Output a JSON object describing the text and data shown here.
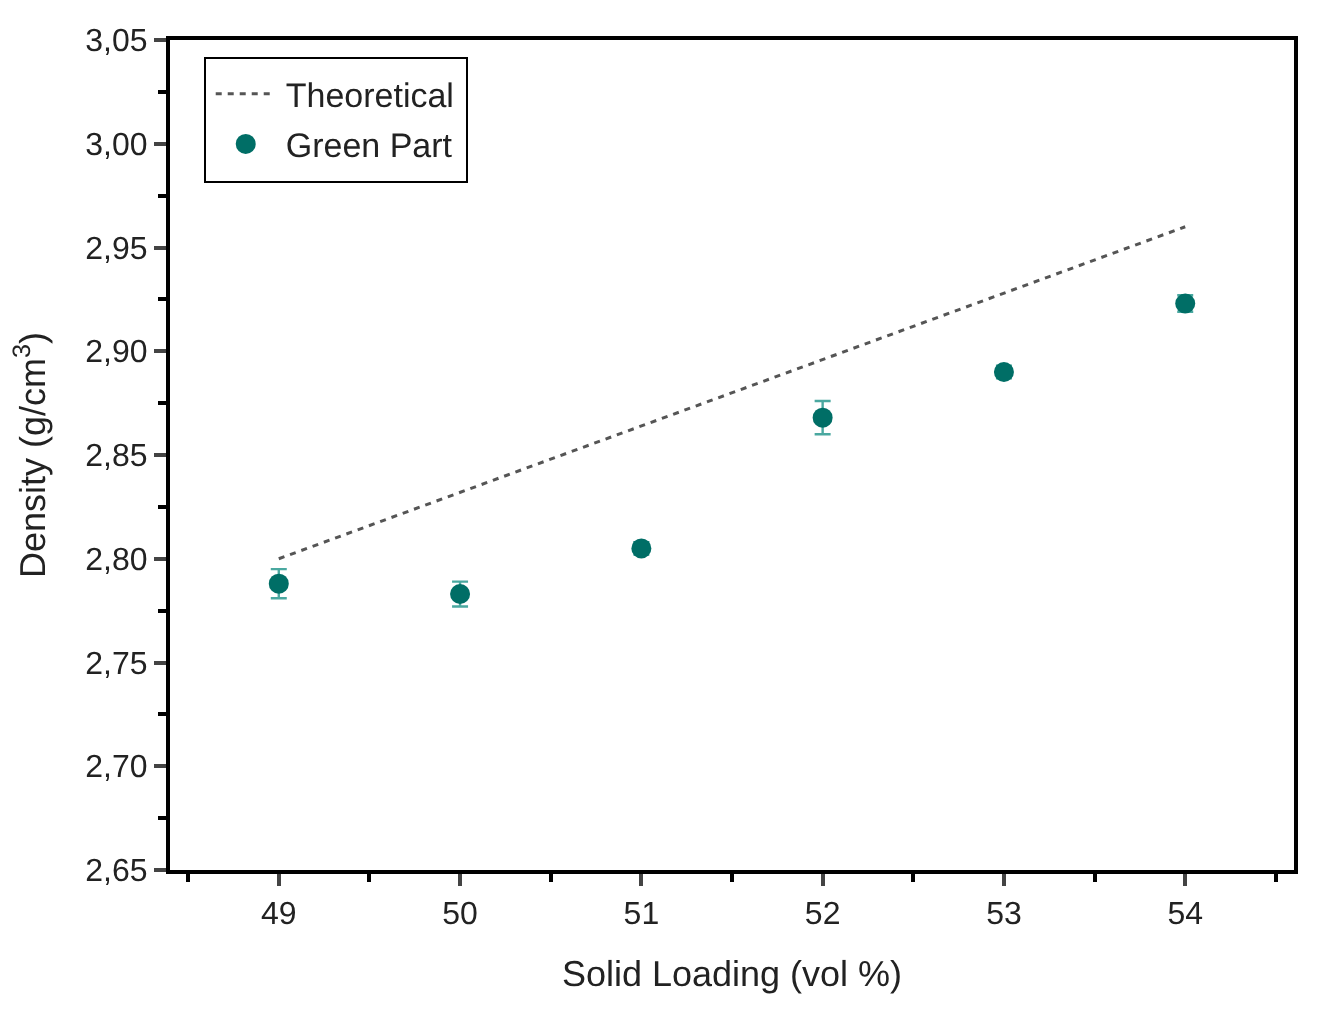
{
  "chart_data": {
    "type": "scatter",
    "xlabel": "Solid Loading (vol %)",
    "ylabel": "Density (g/cm$^{3}$)",
    "xlim": [
      48.4,
      54.6
    ],
    "xticks": [
      49,
      50,
      51,
      52,
      53,
      54
    ],
    "ylim": [
      2.65,
      3.05
    ],
    "yticks": [
      {
        "value": 2.65,
        "label": "2,65"
      },
      {
        "value": 2.7,
        "label": "2,70"
      },
      {
        "value": 2.75,
        "label": "2,75"
      },
      {
        "value": 2.8,
        "label": "2,80"
      },
      {
        "value": 2.85,
        "label": "2,85"
      },
      {
        "value": 2.9,
        "label": "2,90"
      },
      {
        "value": 2.95,
        "label": "2,95"
      },
      {
        "value": 3.0,
        "label": "3,00"
      },
      {
        "value": 3.05,
        "label": "3,05"
      }
    ],
    "legend": "top left",
    "series": [
      {
        "name": "Theoretical",
        "type": "line",
        "color": "#555555",
        "line_style": "dotted",
        "marker": "none",
        "x": [
          49,
          54
        ],
        "values": [
          2.8,
          2.96
        ]
      },
      {
        "name": "Green Part",
        "color": "#006e66",
        "marker": "circle",
        "x": [
          49,
          50,
          51,
          52,
          53,
          54
        ],
        "values": [
          2.788,
          2.783,
          2.805,
          2.868,
          2.89,
          2.923
        ],
        "errors": [
          0.007,
          0.006,
          0.003,
          0.008,
          0.003,
          0.004
        ]
      }
    ]
  }
}
